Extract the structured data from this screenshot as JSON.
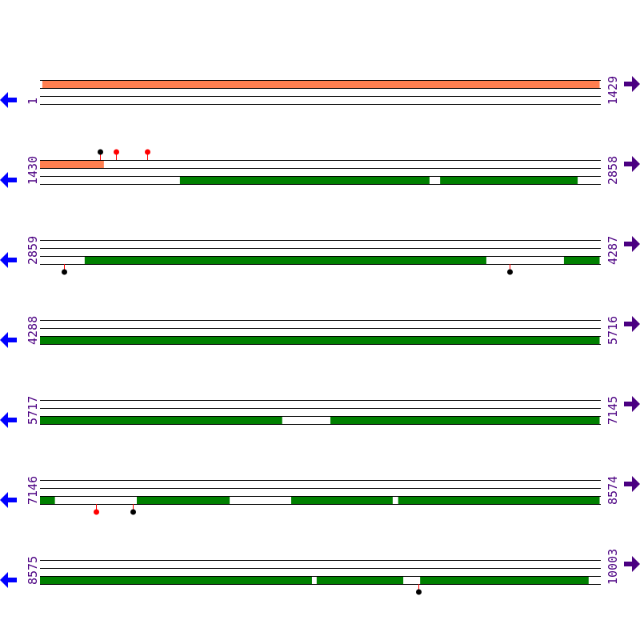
{
  "colors": {
    "line": "#000000",
    "top_feature": "#ff7f50",
    "bottom_feature": "#008000",
    "label": "#4b0082",
    "left_arrow": "#0000ff",
    "right_arrow": "#4b0082",
    "stem": "#ff0000",
    "marker_black": "#000000",
    "marker_red": "#ff0000"
  },
  "bases_per_row": 1429,
  "rows": [
    {
      "start": "1",
      "end": "1429",
      "s": 1,
      "e": 1429,
      "top": [
        [
          7,
          1429
        ]
      ],
      "bottom": [],
      "markers_top": [],
      "markers_bottom": []
    },
    {
      "start": "1430",
      "end": "2858",
      "s": 1430,
      "e": 2858,
      "top": [
        [
          1430,
          1593
        ]
      ],
      "bottom": [
        [
          1787,
          2424
        ],
        [
          2451,
          2802
        ]
      ],
      "markers_top": [
        {
          "pos": 1583,
          "color": "black"
        },
        {
          "pos": 1624,
          "color": "red"
        },
        {
          "pos": 1704,
          "color": "red"
        }
      ],
      "markers_bottom": []
    },
    {
      "start": "2859",
      "end": "4287",
      "s": 2859,
      "e": 4287,
      "top": [],
      "bottom": [
        [
          2973,
          3998
        ],
        [
          4196,
          4287
        ]
      ],
      "markers_top": [],
      "markers_bottom": [
        {
          "pos": 2920,
          "color": "black"
        },
        {
          "pos": 4057,
          "color": "black"
        }
      ]
    },
    {
      "start": "4288",
      "end": "5716",
      "s": 4288,
      "e": 5716,
      "top": [],
      "bottom": [
        [
          4288,
          5716
        ]
      ],
      "markers_top": [],
      "markers_bottom": []
    },
    {
      "start": "5717",
      "end": "7145",
      "s": 5717,
      "e": 7145,
      "top": [],
      "bottom": [
        [
          5717,
          6335
        ],
        [
          6458,
          7145
        ]
      ],
      "markers_top": [],
      "markers_bottom": []
    },
    {
      "start": "7146",
      "end": "8574",
      "s": 7146,
      "e": 8574,
      "top": [],
      "bottom": [
        [
          7146,
          7184
        ],
        [
          7393,
          7630
        ],
        [
          7787,
          8046
        ],
        [
          8060,
          8574
        ]
      ],
      "markers_top": [],
      "markers_bottom": [
        {
          "pos": 7289,
          "color": "red"
        },
        {
          "pos": 7383,
          "color": "black"
        }
      ]
    },
    {
      "start": "8575",
      "end": "10003",
      "s": 8575,
      "e": 10003,
      "top": [],
      "bottom": [
        [
          8575,
          9269
        ],
        [
          9281,
          9502
        ],
        [
          9545,
          9975
        ]
      ],
      "markers_top": [],
      "markers_bottom": [
        {
          "pos": 9541,
          "color": "black"
        }
      ]
    }
  ]
}
